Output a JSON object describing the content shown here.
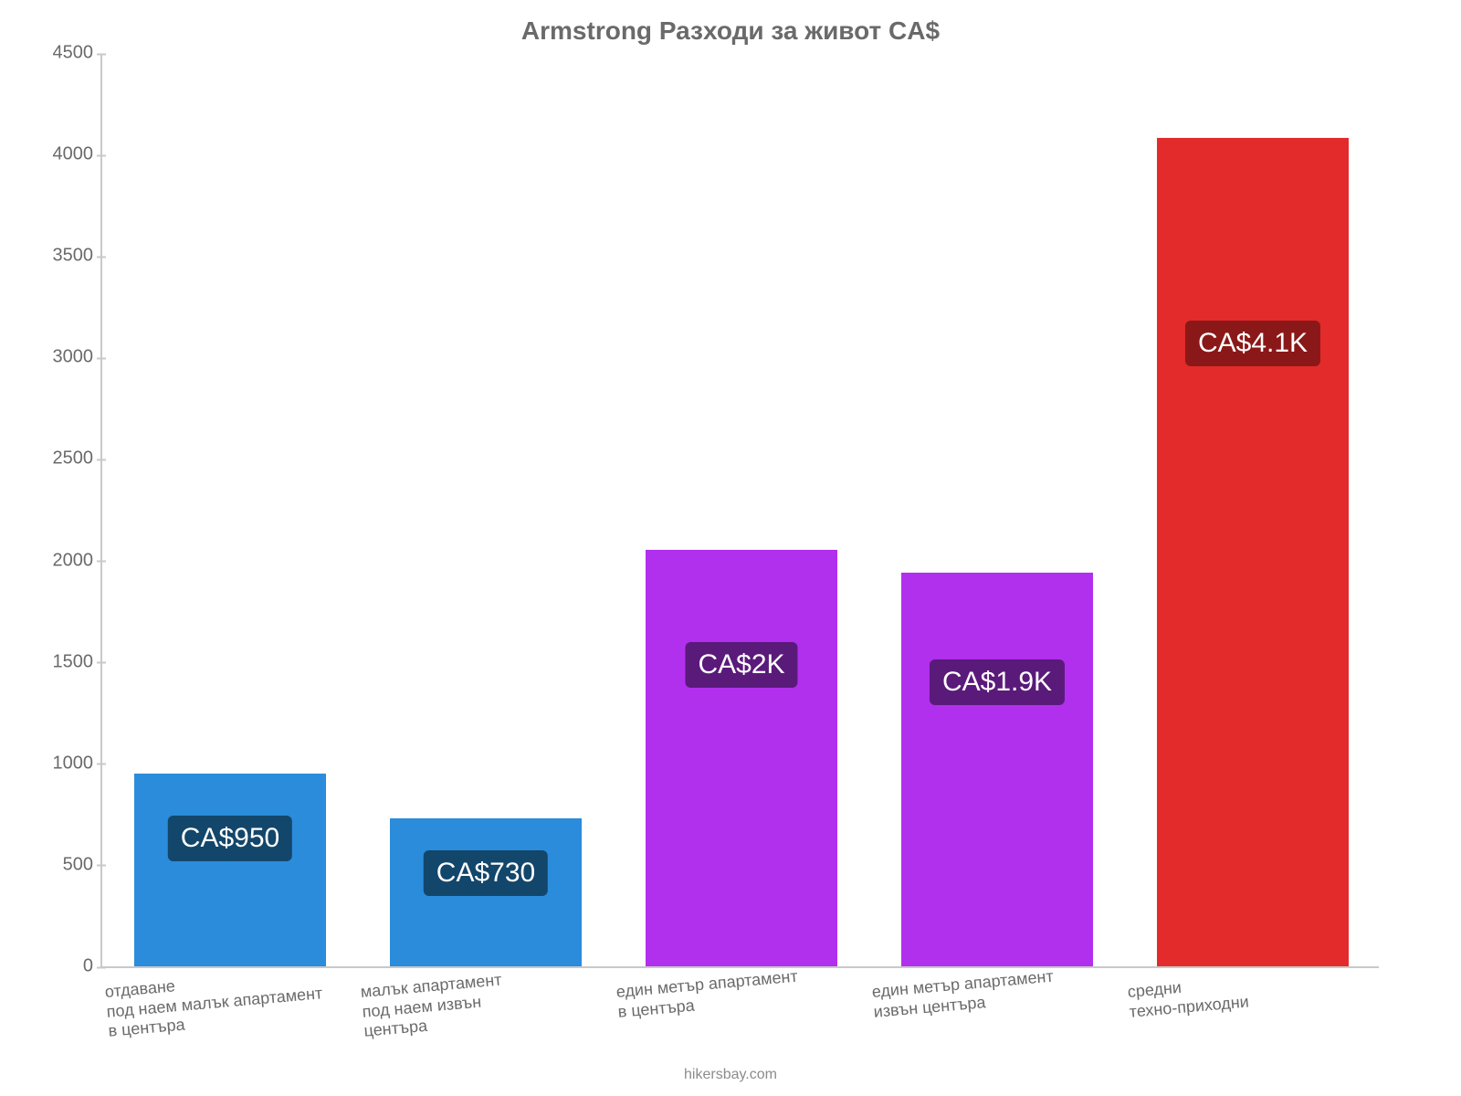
{
  "chart": {
    "type": "bar",
    "title": "Armstrong Разходи за живот CA$",
    "title_fontsize": 28,
    "title_color": "#6a6a6a",
    "background_color": "#ffffff",
    "axis_color": "#c9c9c9",
    "label_color": "#6a6a6a",
    "ylabel_fontsize": 20,
    "xlabel_fontsize": 18,
    "ylim": [
      0,
      4500
    ],
    "ytick_step": 500,
    "yticks": [
      0,
      500,
      1000,
      1500,
      2000,
      2500,
      3000,
      3500,
      4000,
      4500
    ],
    "bar_width_ratio": 0.75,
    "categories": [
      "отдаване\nпод наем малък апартамент\nв центъра",
      "малък апартамент\nпод наем извън\nцентъра",
      "един метър апартамент\nв центъра",
      "един метър апартамент\nизвън центъра",
      "средни\nтехно-приходни"
    ],
    "values": [
      950,
      730,
      2050,
      1940,
      4080
    ],
    "bar_colors": [
      "#2a8cdb",
      "#2a8cdb",
      "#b130ed",
      "#b130ed",
      "#e32b2b"
    ],
    "value_labels": [
      "CA$950",
      "CA$730",
      "CA$2K",
      "CA$1.9K",
      "CA$4.1K"
    ],
    "value_label_fontsize": 30,
    "value_label_bg": [
      "#13466b",
      "#13466b",
      "#5a1a7a",
      "#5a1a7a",
      "#8b1818"
    ],
    "value_label_text_color": "#ffffff",
    "footer": "hikersbay.com",
    "footer_fontsize": 16,
    "footer_color": "#8c8c8c",
    "x_label_rotation_deg": -5
  }
}
